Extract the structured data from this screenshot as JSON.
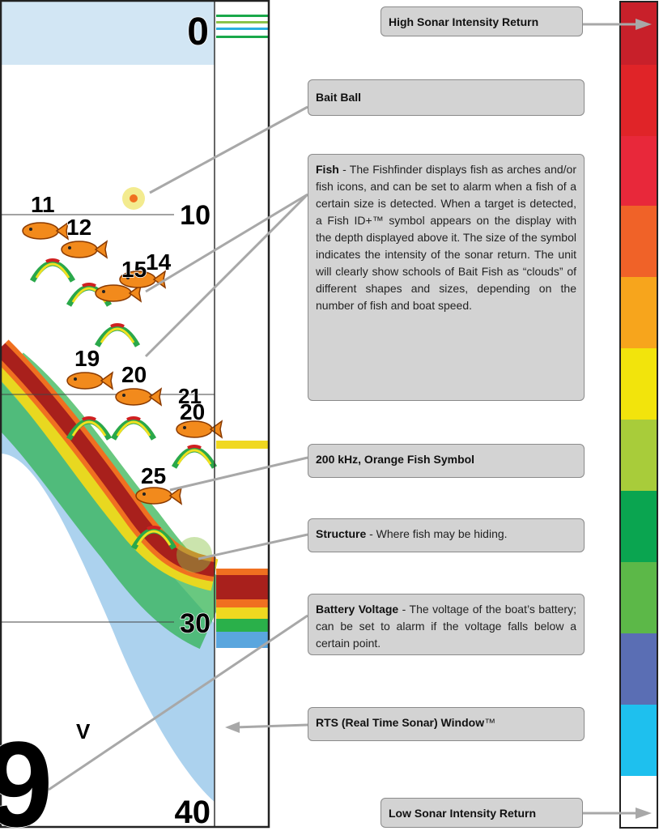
{
  "depth_labels": [
    "0",
    "10",
    "30",
    "40"
  ],
  "fish_labels": [
    "11",
    "12",
    "15",
    "14",
    "19",
    "20",
    "21",
    "20",
    "25"
  ],
  "battery": {
    "value": "9",
    "unit": "V"
  },
  "callouts": [
    {
      "title": "High Sonar Intensity Return"
    },
    {
      "title": "Bait Ball"
    },
    {
      "title": "Fish",
      "text": " - The Fishfinder displays fish as arches and/or fish icons, and can be set to alarm when a fish of a certain size is detected. When a target is detected, a Fish ID+™ symbol appears on the display with the depth displayed above it. The size of the symbol indicates the intensity of the sonar return. The unit will clearly show schools of Bait Fish as “clouds” of different shapes and sizes, depending on the number of fish and boat speed."
    },
    {
      "title": "200 kHz, Orange Fish Symbol"
    },
    {
      "title": "Structure",
      "text": " - Where fish may be hiding."
    },
    {
      "title": "Battery Voltage",
      "text": " - The voltage of the boat’s battery; can be set to alarm if the voltage falls below a certain point."
    },
    {
      "title": "RTS (Real Time Sonar) Window",
      "text": "™"
    },
    {
      "title": "Low Sonar Intensity Return"
    }
  ]
}
